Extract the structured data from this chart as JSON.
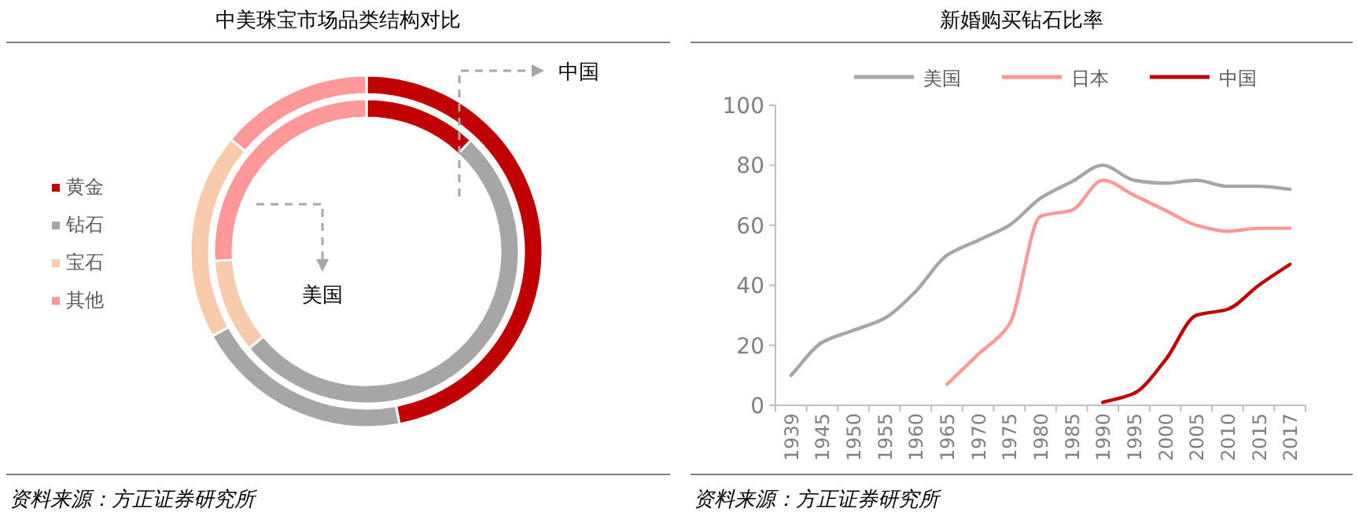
{
  "chart_data": [
    {
      "type": "donut",
      "title": "中美珠宝市场品类结构对比",
      "categories": [
        "黄金",
        "钻石",
        "宝石",
        "其他"
      ],
      "colors": [
        "#c00000",
        "#a6a6a6",
        "#f8cbad",
        "#ff9999"
      ],
      "legend": "left",
      "series": [
        {
          "name": "中国",
          "values": [
            47,
            20,
            19,
            14
          ]
        },
        {
          "name": "美国",
          "values": [
            12,
            52,
            10,
            26
          ]
        }
      ],
      "annotations": [
        "资料来源：方正证券研究所"
      ]
    },
    {
      "type": "line",
      "title": "新婚购买钻石比率",
      "categories": [
        "1939",
        "1945",
        "1950",
        "1955",
        "1960",
        "1965",
        "1970",
        "1975",
        "1980",
        "1985",
        "1990",
        "1995",
        "2000",
        "2005",
        "2010",
        "2015",
        "2017"
      ],
      "ylim": [
        0,
        100
      ],
      "yticks": [
        0,
        20,
        40,
        60,
        80,
        100
      ],
      "legend": "top",
      "grid": false,
      "series": [
        {
          "name": "美国",
          "color": "#a6a6a6",
          "values": [
            10,
            21,
            25,
            29,
            38,
            50,
            55,
            60,
            69,
            74.5,
            80,
            75,
            74,
            75,
            73,
            73,
            72
          ]
        },
        {
          "name": "日本",
          "color": "#ff9999",
          "values": [
            null,
            null,
            null,
            null,
            null,
            7,
            17,
            27,
            63,
            65,
            75,
            70,
            65,
            60,
            58,
            59,
            59
          ]
        },
        {
          "name": "中国",
          "color": "#c00000",
          "values": [
            null,
            null,
            null,
            null,
            null,
            null,
            null,
            null,
            null,
            null,
            1,
            4,
            15,
            30,
            32,
            40,
            47
          ]
        }
      ],
      "annotations": [
        "资料来源：方正证券研究所"
      ]
    }
  ]
}
